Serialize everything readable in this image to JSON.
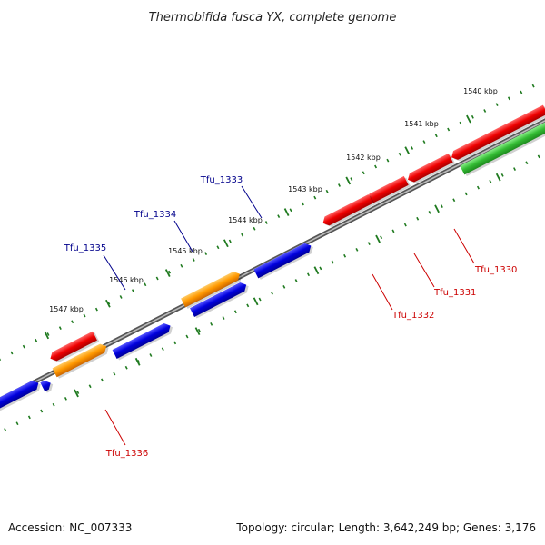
{
  "title": "Thermobifida fusca YX, complete genome",
  "footer": {
    "accession": "Accession: NC_007333",
    "summary": "Topology: circular; Length: 3,642,249 bp; Genes: 3,176"
  },
  "colors": {
    "backbone": "#777777",
    "ticks": "#1f7a1f",
    "red": "#ee0000",
    "blue": "#0000dd",
    "orange": "#ff9900",
    "green": "#33bb33",
    "label_blue": "#00008b",
    "label_red": "#cc0000"
  },
  "ticks": [
    {
      "label": "1540 kbp"
    },
    {
      "label": "1541 kbp"
    },
    {
      "label": "1542 kbp"
    },
    {
      "label": "1543 kbp"
    },
    {
      "label": "1544 kbp"
    },
    {
      "label": "1545 kbp"
    },
    {
      "label": "1546 kbp"
    },
    {
      "label": "1547 kbp"
    }
  ],
  "genes": [
    {
      "name": "Tfu_1330",
      "color": "red"
    },
    {
      "name": "Tfu_1331",
      "color": "red"
    },
    {
      "name": "Tfu_1332",
      "color": "red"
    },
    {
      "name": "Tfu_1333",
      "color": "blue"
    },
    {
      "name": "Tfu_1334",
      "color": "blue"
    },
    {
      "name": "Tfu_1335",
      "color": "blue"
    },
    {
      "name": "Tfu_1336",
      "color": "red"
    }
  ]
}
